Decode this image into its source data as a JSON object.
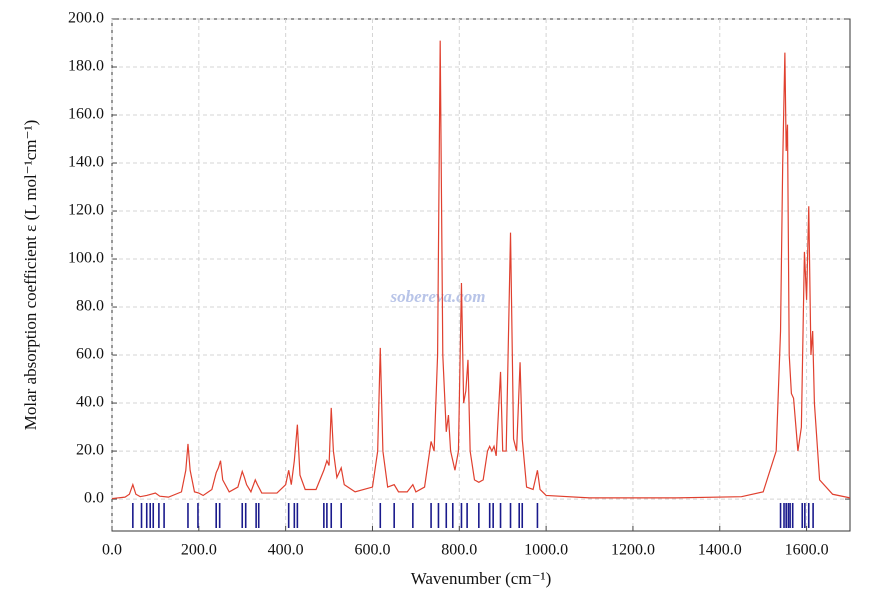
{
  "chart_data": {
    "type": "line",
    "xlabel": "Wavenumber (cm⁻¹)",
    "ylabel": "Molar absorption coefficient  ε (L mol⁻¹cm⁻¹)",
    "watermark": "sobereva.com",
    "xlim": [
      0,
      1700
    ],
    "ylim": [
      -13.3,
      200
    ],
    "xticks": [
      {
        "value": 0,
        "label": "0.0"
      },
      {
        "value": 200,
        "label": "200.0"
      },
      {
        "value": 400,
        "label": "400.0"
      },
      {
        "value": 600,
        "label": "600.0"
      },
      {
        "value": 800,
        "label": "800.0"
      },
      {
        "value": 1000,
        "label": "1000.0"
      },
      {
        "value": 1200,
        "label": "1200.0"
      },
      {
        "value": 1400,
        "label": "1400.0"
      },
      {
        "value": 1600,
        "label": "1600.0"
      }
    ],
    "yticks": [
      {
        "value": 0,
        "label": "0.0"
      },
      {
        "value": 20,
        "label": "20.0"
      },
      {
        "value": 40,
        "label": "40.0"
      },
      {
        "value": 60,
        "label": "60.0"
      },
      {
        "value": 80,
        "label": "80.0"
      },
      {
        "value": 100,
        "label": "100.0"
      },
      {
        "value": 120,
        "label": "120.0"
      },
      {
        "value": 140,
        "label": "140.0"
      },
      {
        "value": 160,
        "label": "160.0"
      },
      {
        "value": 180,
        "label": "180.0"
      },
      {
        "value": 200,
        "label": "200.0"
      }
    ],
    "grid": true,
    "series": [
      {
        "color": "#e0402f",
        "x": [
          0,
          30,
          40,
          48,
          55,
          65,
          80,
          100,
          110,
          130,
          160,
          170,
          175,
          180,
          190,
          200,
          210,
          230,
          240,
          245,
          250,
          255,
          270,
          290,
          300,
          305,
          310,
          320,
          330,
          335,
          345,
          380,
          400,
          407,
          413,
          420,
          427,
          433,
          445,
          470,
          488,
          495,
          500,
          505,
          510,
          518,
          528,
          535,
          560,
          600,
          612,
          618,
          624,
          635,
          650,
          660,
          680,
          693,
          700,
          720,
          735,
          742,
          750,
          756,
          762,
          770,
          775,
          780,
          790,
          798,
          805,
          810,
          815,
          820,
          825,
          835,
          845,
          855,
          865,
          870,
          875,
          880,
          885,
          895,
          900,
          908,
          918,
          925,
          932,
          940,
          945,
          955,
          970,
          980,
          986,
          1000,
          1100,
          1300,
          1450,
          1500,
          1530,
          1540,
          1545,
          1550,
          1553,
          1556,
          1560,
          1565,
          1570,
          1580,
          1588,
          1595,
          1600,
          1605,
          1610,
          1614,
          1618,
          1630,
          1660,
          1700
        ],
        "values": [
          0.2,
          0.8,
          2,
          6,
          2,
          1,
          1.5,
          2.5,
          1.2,
          0.8,
          3,
          12,
          23,
          12,
          3,
          2.5,
          1.5,
          4,
          11,
          13,
          16,
          8,
          3,
          5,
          11.5,
          9,
          6,
          3,
          8,
          6,
          2.5,
          2.5,
          6,
          12,
          6,
          16,
          31,
          10,
          4,
          4,
          12,
          16,
          14,
          38,
          20,
          9,
          13,
          6,
          3,
          5,
          20,
          63,
          20,
          5,
          6,
          3,
          3,
          6,
          3,
          5,
          24,
          20,
          60,
          191,
          60,
          28,
          35,
          20,
          12,
          20,
          90,
          40,
          45,
          58,
          20,
          8,
          7,
          8,
          20,
          22,
          20,
          22,
          18,
          53,
          20,
          20,
          111,
          25,
          20,
          57,
          25,
          5,
          4,
          12,
          4,
          1.5,
          0.5,
          0.5,
          1,
          3,
          20,
          70,
          140,
          186,
          145,
          156,
          60,
          44,
          42,
          20,
          30,
          103,
          83,
          122,
          60,
          70,
          40,
          8,
          2,
          0.5
        ]
      }
    ],
    "sticks": {
      "color": "#1a1a8c",
      "x": [
        48,
        68,
        80,
        88,
        95,
        108,
        120,
        175,
        198,
        240,
        248,
        300,
        308,
        332,
        338,
        407,
        420,
        427,
        488,
        495,
        505,
        528,
        618,
        650,
        693,
        735,
        752,
        770,
        785,
        805,
        818,
        845,
        870,
        878,
        895,
        918,
        938,
        945,
        980,
        1540,
        1548,
        1553,
        1558,
        1562,
        1568,
        1590,
        1596,
        1605,
        1615
      ]
    }
  }
}
